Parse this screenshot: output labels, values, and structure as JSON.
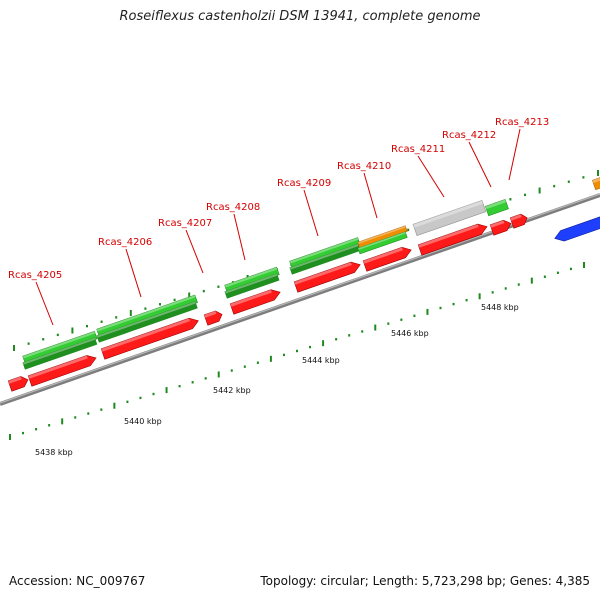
{
  "title": "Roseiflexus castenholzii DSM 13941, complete genome",
  "footer": {
    "accession": "Accession: NC_009767",
    "summary": "Topology: circular; Length: 5,723,298 bp; Genes: 4,385"
  },
  "colors": {
    "label": "#d40000",
    "gene_green": "#33cc33",
    "gene_green_dark": "#1f8f1f",
    "cds_red": "#ff1a1a",
    "orange": "#f08c00",
    "gray": "#c8c8c8",
    "blue": "#1f3fff",
    "backbone": "#8a8a8a",
    "tick": "#1e8a1e"
  },
  "gene_labels": [
    "Rcas_4205",
    "Rcas_4206",
    "Rcas_4207",
    "Rcas_4208",
    "Rcas_4209",
    "Rcas_4210",
    "Rcas_4211",
    "Rcas_4212",
    "Rcas_4213"
  ],
  "scale_labels": [
    "5438 kbp",
    "5440 kbp",
    "5442 kbp",
    "5444 kbp",
    "5446 kbp",
    "5448 kbp"
  ]
}
